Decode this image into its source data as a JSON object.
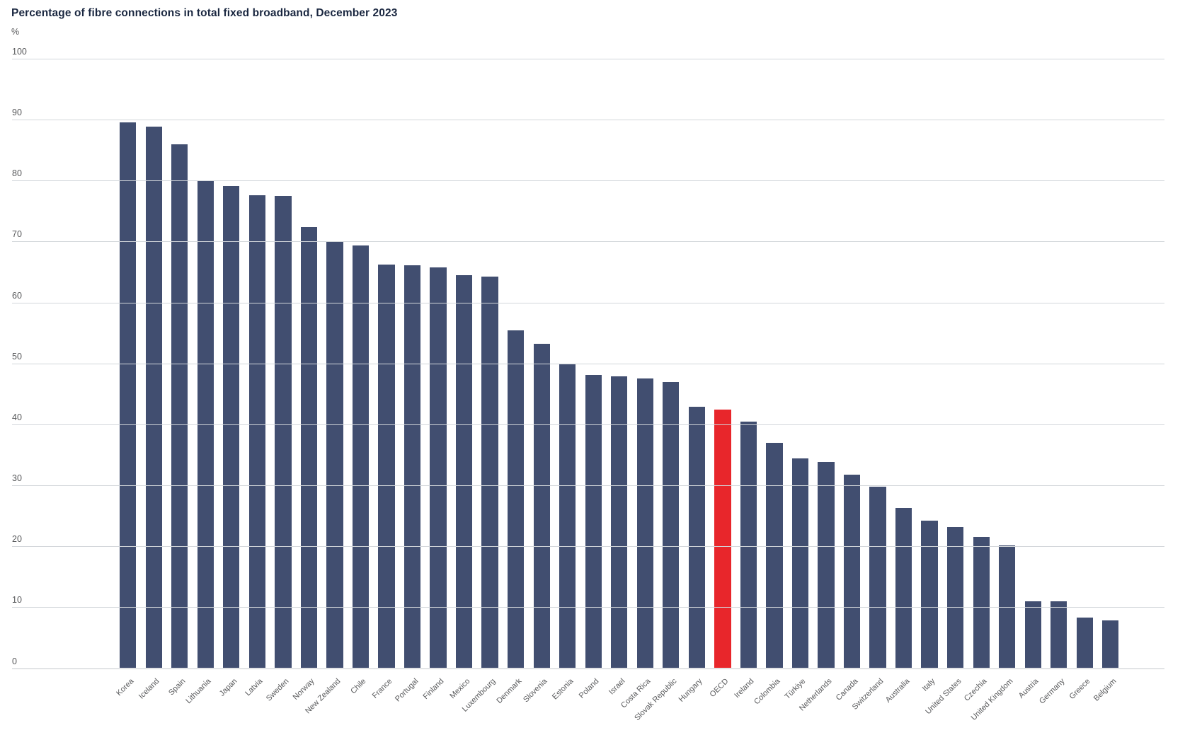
{
  "chart_data": {
    "type": "bar",
    "title": "Percentage of fibre connections in total fixed broadband, December 2023",
    "unit_label": "%",
    "xlabel": "",
    "ylabel": "%",
    "ylim": [
      0,
      100
    ],
    "y_ticks": [
      0,
      10,
      20,
      30,
      40,
      50,
      60,
      70,
      80,
      90,
      100
    ],
    "grid": "horizontal",
    "legend": "none",
    "bar_color": "#414e70",
    "highlight_color": "#e8262b",
    "highlight_category": "OECD",
    "categories": [
      "Korea",
      "Iceland",
      "Spain",
      "Lithuania",
      "Japan",
      "Latvia",
      "Sweden",
      "Norway",
      "New Zealand",
      "Chile",
      "France",
      "Portugal",
      "Finland",
      "Mexico",
      "Luxembourg",
      "Denmark",
      "Slovenia",
      "Estonia",
      "Poland",
      "Israel",
      "Costa Rica",
      "Slovak Republic",
      "Hungary",
      "OECD",
      "Ireland",
      "Colombia",
      "Türkiye",
      "Netherlands",
      "Canada",
      "Switzerland",
      "Australia",
      "Italy",
      "United States",
      "Czechia",
      "United Kingdom",
      "Austria",
      "Germany",
      "Greece",
      "Belgium"
    ],
    "values": [
      89.6,
      88.8,
      85.9,
      79.9,
      79.1,
      77.6,
      77.5,
      72.4,
      70.0,
      69.3,
      66.2,
      66.1,
      65.7,
      64.5,
      64.2,
      55.4,
      53.2,
      49.9,
      48.1,
      47.9,
      47.5,
      47.0,
      42.9,
      42.4,
      40.4,
      37.0,
      34.4,
      33.8,
      31.7,
      29.8,
      26.3,
      24.2,
      23.1,
      21.5,
      20.1,
      11.0,
      11.0,
      8.3,
      7.8
    ]
  }
}
